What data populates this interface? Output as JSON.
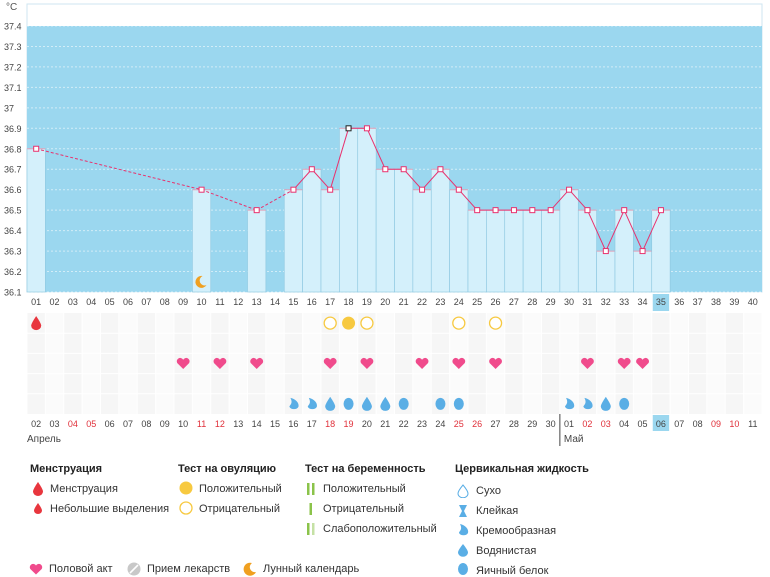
{
  "chart_data": {
    "type": "bar",
    "y_unit": "°C",
    "ylim": [
      36.1,
      37.4
    ],
    "y_ticks": [
      "37.4",
      "37.3",
      "37.2",
      "37.1",
      "37",
      "36.9",
      "36.8",
      "36.7",
      "36.6",
      "36.5",
      "36.4",
      "36.3",
      "36.2",
      "36.1"
    ],
    "cycle_days": [
      "01",
      "02",
      "03",
      "04",
      "05",
      "06",
      "07",
      "08",
      "09",
      "10",
      "11",
      "12",
      "13",
      "14",
      "15",
      "16",
      "17",
      "18",
      "19",
      "20",
      "21",
      "22",
      "23",
      "24",
      "25",
      "26",
      "27",
      "28",
      "29",
      "30",
      "31",
      "32",
      "33",
      "34",
      "35",
      "36",
      "37",
      "38",
      "39",
      "40"
    ],
    "current_day": "35",
    "temperatures": [
      {
        "day": 1,
        "temp": 36.8
      },
      {
        "day": 10,
        "temp": 36.6
      },
      {
        "day": 13,
        "temp": 36.5
      },
      {
        "day": 15,
        "temp": 36.6
      },
      {
        "day": 16,
        "temp": 36.7
      },
      {
        "day": 17,
        "temp": 36.6
      },
      {
        "day": 18,
        "temp": 36.9
      },
      {
        "day": 19,
        "temp": 36.9
      },
      {
        "day": 20,
        "temp": 36.7
      },
      {
        "day": 21,
        "temp": 36.7
      },
      {
        "day": 22,
        "temp": 36.6
      },
      {
        "day": 23,
        "temp": 36.7
      },
      {
        "day": 24,
        "temp": 36.6
      },
      {
        "day": 25,
        "temp": 36.5
      },
      {
        "day": 26,
        "temp": 36.5
      },
      {
        "day": 27,
        "temp": 36.5
      },
      {
        "day": 28,
        "temp": 36.5
      },
      {
        "day": 29,
        "temp": 36.5
      },
      {
        "day": 30,
        "temp": 36.6
      },
      {
        "day": 31,
        "temp": 36.5
      },
      {
        "day": 32,
        "temp": 36.3
      },
      {
        "day": 33,
        "temp": 36.5
      },
      {
        "day": 34,
        "temp": 36.3
      },
      {
        "day": 35,
        "temp": 36.5
      }
    ],
    "dashed_segments": [
      [
        1,
        10
      ],
      [
        10,
        13
      ],
      [
        13,
        15
      ]
    ],
    "moon_day": 10,
    "menstruation_days": [
      1
    ],
    "ovulation_test_positive": [
      18
    ],
    "ovulation_test_negative": [
      17,
      19,
      24,
      26
    ],
    "intercourse_days": [
      9,
      11,
      13,
      17,
      19,
      22,
      24,
      26,
      31,
      33,
      34
    ],
    "cervical_fluid": [
      {
        "day": 15,
        "type": "creamy"
      },
      {
        "day": 16,
        "type": "creamy"
      },
      {
        "day": 17,
        "type": "watery"
      },
      {
        "day": 18,
        "type": "egg-white"
      },
      {
        "day": 19,
        "type": "watery"
      },
      {
        "day": 20,
        "type": "watery"
      },
      {
        "day": 21,
        "type": "egg-white"
      },
      {
        "day": 23,
        "type": "egg-white"
      },
      {
        "day": 24,
        "type": "egg-white"
      },
      {
        "day": 30,
        "type": "creamy"
      },
      {
        "day": 31,
        "type": "creamy"
      },
      {
        "day": 32,
        "type": "watery"
      },
      {
        "day": 33,
        "type": "egg-white"
      }
    ],
    "calendar_dates": [
      "02",
      "03",
      "04",
      "05",
      "06",
      "07",
      "08",
      "09",
      "10",
      "11",
      "12",
      "13",
      "14",
      "15",
      "16",
      "17",
      "18",
      "19",
      "20",
      "21",
      "22",
      "23",
      "24",
      "25",
      "26",
      "27",
      "28",
      "29",
      "30",
      "01",
      "02",
      "03",
      "04",
      "05",
      "06",
      "07",
      "08",
      "09",
      "10",
      "11"
    ],
    "weekend_indices": [
      2,
      3,
      9,
      10,
      16,
      17,
      23,
      24,
      30,
      31,
      37,
      38
    ],
    "months": [
      {
        "label": "Апрель",
        "start_index": 0
      },
      {
        "label": "Май",
        "start_index": 29
      }
    ],
    "colors": {
      "sky": "#9bd7ef",
      "bar": "#d4f0fb",
      "bar_border": "#8bc6e0",
      "line": "#e8326e",
      "highlight": "#9bd7ef",
      "heart": "#f04b8c",
      "drop": "#e8363e",
      "yellow": "#f7c940",
      "fluid": "#5aaee5",
      "moon": "#f0a020"
    }
  },
  "legend": {
    "menstruation": {
      "title": "Менструация",
      "items": [
        "Менструация",
        "Небольшие выделения"
      ]
    },
    "ovulation_test": {
      "title": "Тест на овуляцию",
      "items": [
        "Положительный",
        "Отрицательный"
      ]
    },
    "pregnancy_test": {
      "title": "Тест на беременность",
      "items": [
        "Положительный",
        "Отрицательный",
        "Слабоположительный"
      ]
    },
    "cervical_fluid": {
      "title": "Цервикальная жидкость",
      "items": [
        "Сухо",
        "Клейкая",
        "Кремообразная",
        "Водянистая",
        "Яичный белок"
      ]
    },
    "bottom": [
      "Половой акт",
      "Прием лекарств",
      "Лунный календарь"
    ]
  }
}
